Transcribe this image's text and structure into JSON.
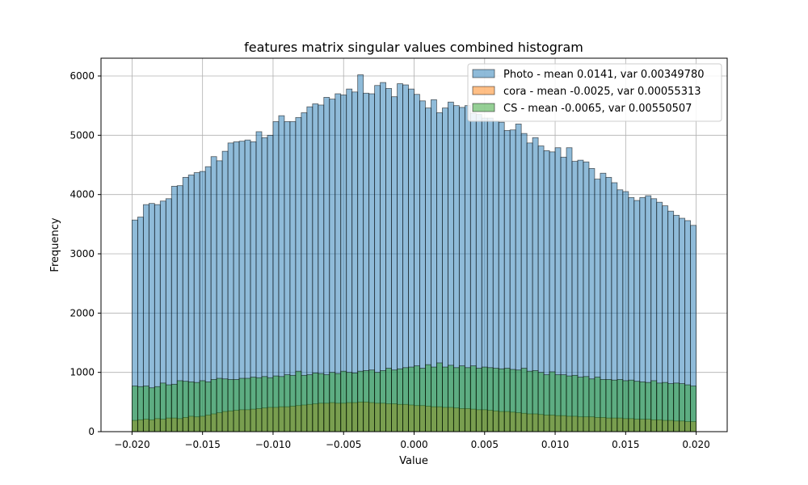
{
  "chart_data": {
    "type": "bar",
    "title": "features matrix singular values combined histogram",
    "xlabel": "Value",
    "ylabel": "Frequency",
    "xlim": [
      -0.0222,
      0.0222
    ],
    "ylim": [
      0,
      6300
    ],
    "xticks": [
      -0.02,
      -0.015,
      -0.01,
      -0.005,
      0.0,
      0.005,
      0.01,
      0.015,
      0.02
    ],
    "xtick_labels": [
      "−0.020",
      "−0.015",
      "−0.010",
      "−0.005",
      "0.000",
      "0.005",
      "0.010",
      "0.015",
      "0.020"
    ],
    "yticks": [
      0,
      1000,
      2000,
      3000,
      4000,
      5000,
      6000
    ],
    "ytick_labels": [
      "0",
      "1000",
      "2000",
      "3000",
      "4000",
      "5000",
      "6000"
    ],
    "grid": true,
    "legend_position": "top-right",
    "bin_start": -0.02,
    "bin_end": 0.02,
    "bin_count": 100,
    "series": [
      {
        "name": "Photo - mean 0.0141, var 0.00349780",
        "color": "#1f77b4",
        "values": [
          3570,
          3620,
          3830,
          3850,
          3830,
          3890,
          3930,
          4140,
          4150,
          4290,
          4330,
          4370,
          4390,
          4470,
          4640,
          4570,
          4730,
          4870,
          4890,
          4900,
          4920,
          4890,
          5060,
          4960,
          5000,
          5230,
          5330,
          5230,
          5230,
          5300,
          5380,
          5480,
          5530,
          5510,
          5640,
          5610,
          5700,
          5680,
          5780,
          5730,
          6020,
          5710,
          5700,
          5840,
          5890,
          5790,
          5650,
          5870,
          5850,
          5780,
          5690,
          5580,
          5460,
          5600,
          5380,
          5460,
          5560,
          5500,
          5470,
          5500,
          5370,
          5350,
          5290,
          5290,
          5240,
          5220,
          5080,
          5090,
          5190,
          5030,
          4870,
          4960,
          4820,
          4740,
          4720,
          4790,
          4630,
          4790,
          4560,
          4580,
          4550,
          4440,
          4260,
          4360,
          4290,
          4200,
          4080,
          4050,
          3950,
          3900,
          3950,
          3980,
          3930,
          3870,
          3810,
          3720,
          3650,
          3600,
          3560,
          3480
        ]
      },
      {
        "name": "cora - mean -0.0025, var 0.00055313",
        "color": "#ff7f0e",
        "values": [
          190,
          200,
          210,
          200,
          220,
          210,
          230,
          230,
          220,
          240,
          260,
          250,
          260,
          280,
          300,
          320,
          340,
          350,
          360,
          370,
          370,
          380,
          390,
          400,
          410,
          410,
          420,
          420,
          430,
          440,
          450,
          460,
          470,
          480,
          480,
          490,
          480,
          480,
          490,
          490,
          500,
          500,
          490,
          480,
          480,
          470,
          470,
          460,
          460,
          450,
          440,
          440,
          430,
          420,
          420,
          410,
          410,
          400,
          390,
          390,
          380,
          370,
          370,
          360,
          350,
          340,
          340,
          330,
          320,
          310,
          300,
          300,
          290,
          280,
          280,
          270,
          270,
          260,
          260,
          250,
          250,
          250,
          240,
          240,
          230,
          230,
          230,
          220,
          220,
          210,
          210,
          210,
          200,
          200,
          190,
          190,
          180,
          180,
          170,
          170
        ]
      },
      {
        "name": "CS - mean -0.0065, var 0.00550507",
        "color": "#2ca02c",
        "values": [
          770,
          760,
          770,
          740,
          760,
          820,
          790,
          800,
          860,
          850,
          840,
          830,
          860,
          840,
          880,
          900,
          890,
          880,
          880,
          900,
          900,
          920,
          910,
          930,
          910,
          940,
          930,
          960,
          950,
          1020,
          950,
          960,
          990,
          980,
          960,
          1000,
          980,
          1020,
          1000,
          990,
          1020,
          1030,
          1040,
          1000,
          1030,
          1070,
          1040,
          1060,
          1080,
          1090,
          1110,
          1070,
          1130,
          1090,
          1160,
          1090,
          1120,
          1080,
          1110,
          1080,
          1110,
          1070,
          1090,
          1080,
          1070,
          1060,
          1070,
          1050,
          1040,
          1070,
          1020,
          1030,
          1000,
          960,
          1010,
          960,
          960,
          940,
          950,
          920,
          930,
          890,
          920,
          880,
          880,
          870,
          880,
          860,
          870,
          850,
          840,
          830,
          860,
          820,
          830,
          810,
          820,
          810,
          790,
          770
        ]
      }
    ]
  }
}
